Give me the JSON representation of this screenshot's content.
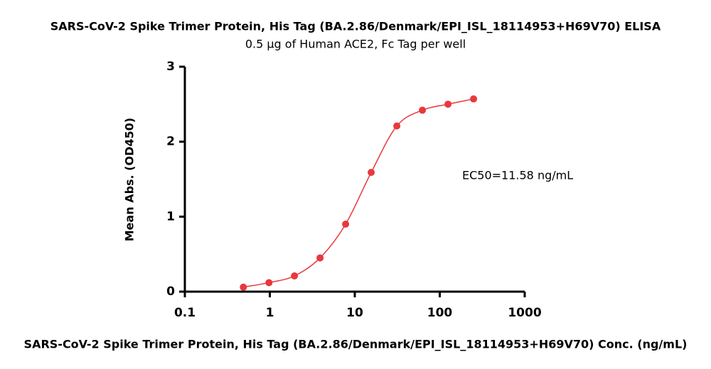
{
  "chart_data": {
    "type": "scatter",
    "title": "SARS-CoV-2 Spike Trimer Protein, His Tag (BA.2.86/Denmark/EPI_ISL_18114953+H69V70) ELISA",
    "subtitle": "0.5 µg of Human ACE2, Fc Tag per well",
    "x_label": "SARS-CoV-2 Spike Trimer Protein, His Tag (BA.2.86/Denmark/EPI_ISL_18114953+H69V70) Conc. (ng/mL)",
    "y_label": "Mean Abs. (OD450)",
    "annotation": "EC50=11.58 ng/mL",
    "x": [
      0.488,
      0.977,
      1.95,
      3.9,
      7.8,
      15.6,
      31.25,
      62.5,
      125,
      250
    ],
    "series": [
      {
        "color": "#e8383d",
        "values": [
          0.06,
          0.12,
          0.21,
          0.45,
          0.9,
          1.59,
          2.21,
          2.42,
          2.5,
          2.57
        ]
      }
    ],
    "x_log": true,
    "xlim": [
      0.1,
      1000
    ],
    "xticks": [
      0.1,
      1,
      10,
      100,
      1000
    ],
    "ylim": [
      0,
      3
    ],
    "yticks": [
      0,
      1,
      2,
      3
    ]
  }
}
